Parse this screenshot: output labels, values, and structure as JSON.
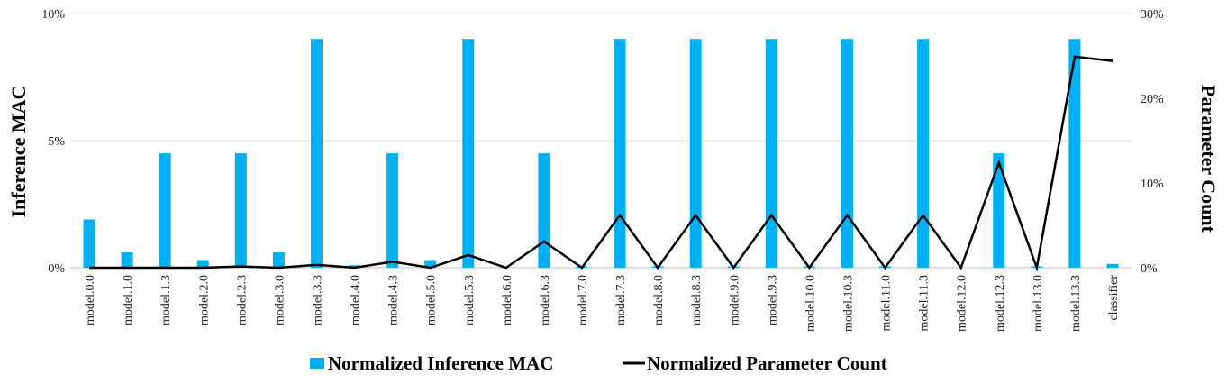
{
  "chart_data": {
    "type": "bar",
    "categories": [
      "model.0.0",
      "model.1.0",
      "model.1.3",
      "model.2.0",
      "model.2.3",
      "model.3.0",
      "model.3.3",
      "model.4.0",
      "model.4.3",
      "model.5.0",
      "model.5.3",
      "model.6.0",
      "model.6.3",
      "model.7.0",
      "model.7.3",
      "model.8.0",
      "model.8.3",
      "model.9.0",
      "model.9.3",
      "model.10.0",
      "model.10.3",
      "model.11.0",
      "model.11.3",
      "model.12.0",
      "model.12.3",
      "model.13.0",
      "model.13.3",
      "classifier"
    ],
    "series": [
      {
        "name": "Normalized Inference MAC",
        "type": "bar",
        "axis": "left",
        "color": "#00b0f0",
        "values": [
          1.9,
          0.6,
          4.5,
          0.3,
          4.5,
          0.6,
          9.0,
          0.1,
          4.5,
          0.3,
          9.0,
          0.0,
          4.5,
          0.05,
          9.0,
          0.05,
          9.0,
          0.05,
          9.0,
          0.05,
          9.0,
          0.05,
          9.0,
          0.0,
          4.5,
          0.05,
          9.0,
          0.15
        ]
      },
      {
        "name": "Normalized Parameter Count",
        "type": "line",
        "axis": "right",
        "color": "#000000",
        "values": [
          0.0,
          0.0,
          0.0,
          0.0,
          0.15,
          0.0,
          0.35,
          0.0,
          0.7,
          0.0,
          1.5,
          0.0,
          3.1,
          0.0,
          6.2,
          0.0,
          6.2,
          0.0,
          6.2,
          0.0,
          6.2,
          0.0,
          6.2,
          0.0,
          12.4,
          0.0,
          24.9,
          24.4
        ]
      }
    ],
    "y_left": {
      "label": "Inference MAC",
      "ylim": [
        0,
        10
      ],
      "ticks": [
        0,
        5,
        10
      ],
      "tick_labels": [
        "0%",
        "5%",
        "10%"
      ]
    },
    "y_right": {
      "label": "Parameter Count",
      "ylim": [
        0,
        30
      ],
      "ticks": [
        0,
        10,
        20,
        30
      ],
      "tick_labels": [
        "0%",
        "10%",
        "20%",
        "30%"
      ]
    },
    "grid": true,
    "legend_position": "bottom"
  }
}
